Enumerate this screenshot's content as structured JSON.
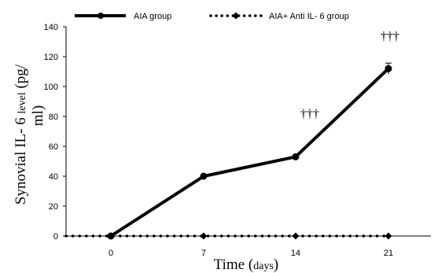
{
  "chart_data": {
    "type": "line",
    "x": [
      0,
      7,
      14,
      21
    ],
    "categories": [
      "0",
      "7",
      "14",
      "21"
    ],
    "xlabel_main": "Time (",
    "xlabel_unit": "days",
    "xlabel_close": ")",
    "ylabel_main": "Synovial IL- 6 ",
    "ylabel_small": "level",
    "ylabel_tail": " (pg/",
    "ylabel_line2": "ml)",
    "ylim": [
      0,
      140
    ],
    "yticks": [
      "0",
      "20",
      "40",
      "60",
      "80",
      "100",
      "120",
      "140"
    ],
    "grid": false,
    "legend_position": "top",
    "series": [
      {
        "name": "AIA group",
        "values": [
          0,
          40,
          53,
          112
        ],
        "style": "solid",
        "marker": "circle",
        "color": "#000000"
      },
      {
        "name": "AIA+ Anti IL- 6 group",
        "values": [
          0,
          0,
          0,
          0
        ],
        "style": "dotted",
        "marker": "diamond",
        "color": "#000000"
      }
    ],
    "annotations": [
      {
        "text": "†††",
        "x": 14,
        "y": 53
      },
      {
        "text": "†††",
        "x": 21,
        "y": 112
      }
    ]
  }
}
